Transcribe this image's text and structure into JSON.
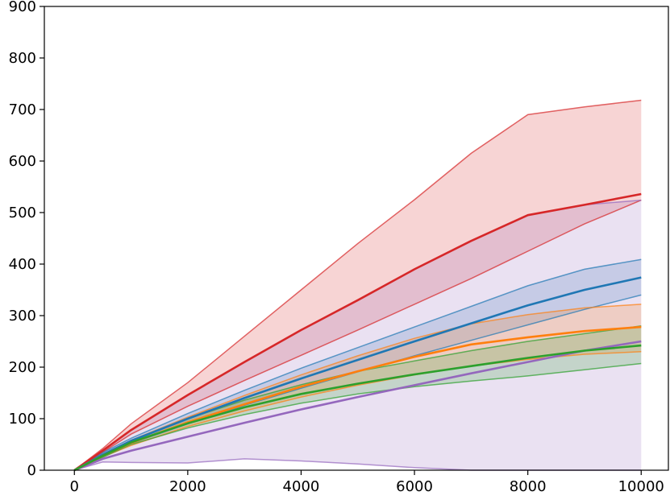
{
  "chart_data": {
    "type": "area",
    "title": "",
    "xlabel": "",
    "ylabel": "",
    "xlim": [
      -530,
      10480
    ],
    "ylim": [
      0,
      900
    ],
    "grid": false,
    "legend": "none",
    "x_ticks": [
      "0",
      "2000",
      "4000",
      "6000",
      "8000",
      "10000"
    ],
    "x_tick_values": [
      0,
      2000,
      4000,
      6000,
      8000,
      10000
    ],
    "y_ticks": [
      "0",
      "100",
      "200",
      "300",
      "400",
      "500",
      "600",
      "700",
      "800",
      "900"
    ],
    "y_tick_values": [
      0,
      100,
      200,
      300,
      400,
      500,
      600,
      700,
      800,
      900
    ],
    "x": [
      0,
      500,
      1000,
      2000,
      3000,
      4000,
      5000,
      6000,
      7000,
      8000,
      9000,
      10000
    ],
    "series": [
      {
        "color": "#d62728",
        "mean": [
          0,
          38,
          78,
          146,
          210,
          272,
          330,
          390,
          445,
          495,
          515,
          536
        ],
        "lower": [
          0,
          35,
          70,
          124,
          174,
          223,
          272,
          322,
          372,
          425,
          478,
          524
        ],
        "upper": [
          0,
          42,
          90,
          170,
          260,
          350,
          440,
          525,
          615,
          690,
          705,
          718
        ]
      },
      {
        "color": "#1f77b4",
        "mean": [
          0,
          30,
          57,
          100,
          140,
          178,
          214,
          250,
          285,
          320,
          350,
          374
        ],
        "lower": [
          0,
          27,
          52,
          90,
          126,
          159,
          191,
          222,
          252,
          282,
          312,
          340
        ],
        "upper": [
          0,
          34,
          62,
          110,
          155,
          198,
          238,
          278,
          318,
          358,
          390,
          409
        ]
      },
      {
        "color": "#9467bd",
        "mean": [
          0,
          22,
          38,
          65,
          92,
          118,
          142,
          165,
          188,
          210,
          232,
          250
        ],
        "lower": [
          0,
          16,
          15,
          14,
          22,
          18,
          12,
          5,
          0,
          0,
          0,
          0
        ],
        "upper": [
          0,
          38,
          78,
          146,
          210,
          272,
          330,
          390,
          445,
          495,
          515,
          524
        ]
      },
      {
        "color": "#ff7f0e",
        "mean": [
          0,
          28,
          53,
          93,
          128,
          162,
          192,
          220,
          244,
          258,
          270,
          278
        ],
        "lower": [
          0,
          26,
          48,
          85,
          115,
          142,
          165,
          185,
          202,
          215,
          225,
          230
        ],
        "upper": [
          0,
          31,
          58,
          103,
          145,
          185,
          222,
          256,
          284,
          302,
          315,
          322
        ]
      },
      {
        "color": "#2ca02c",
        "mean": [
          0,
          28,
          54,
          91,
          122,
          148,
          168,
          186,
          202,
          218,
          232,
          242
        ],
        "lower": [
          0,
          25,
          50,
          82,
          108,
          130,
          148,
          162,
          173,
          183,
          195,
          207
        ],
        "upper": [
          0,
          30,
          58,
          100,
          136,
          166,
          192,
          212,
          232,
          250,
          265,
          280
        ]
      }
    ]
  }
}
